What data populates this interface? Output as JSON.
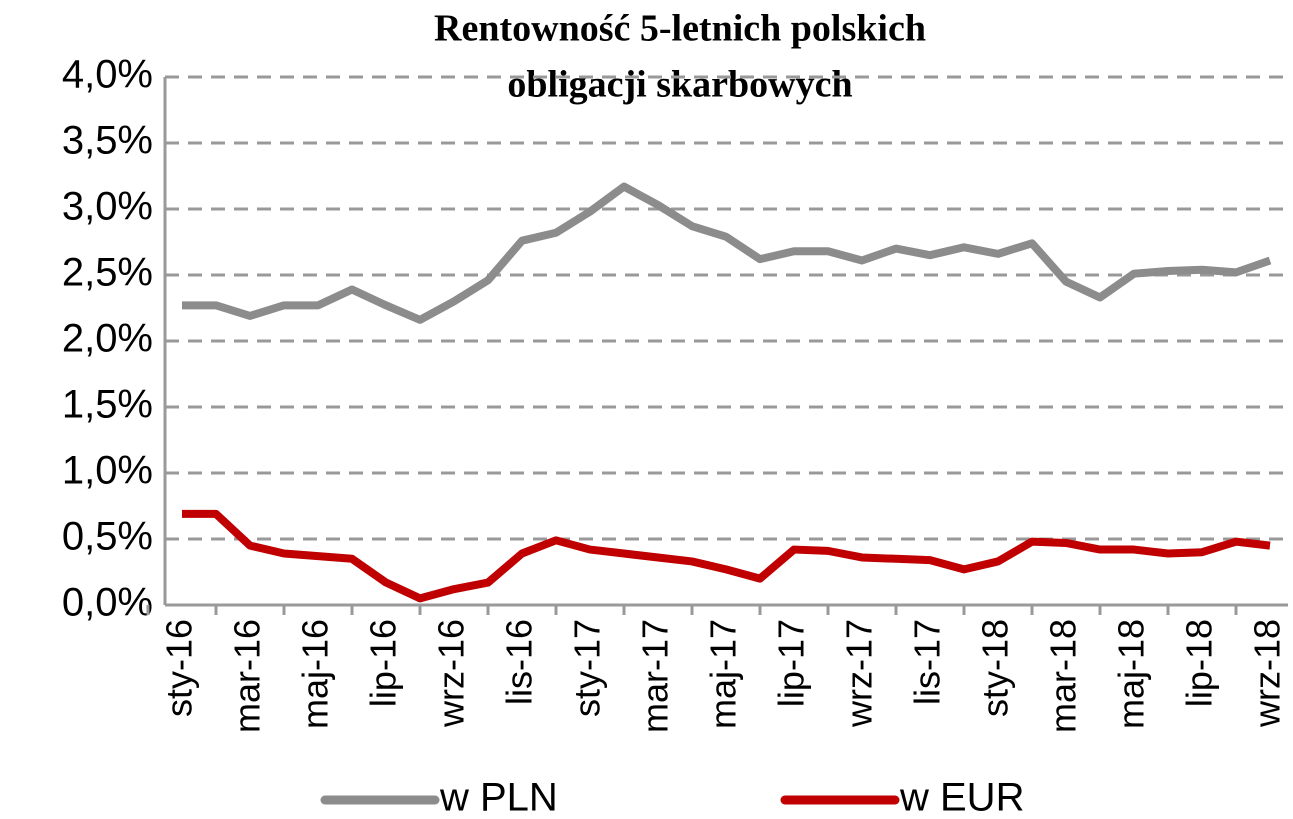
{
  "chart_data": {
    "type": "line",
    "title": [
      "Rentowność 5-letnich polskich",
      "obligacji skarbowych"
    ],
    "categories": [
      "sty-16",
      null,
      "mar-16",
      null,
      "maj-16",
      null,
      "lip-16",
      null,
      "wrz-16",
      null,
      "lis-16",
      null,
      "sty-17",
      null,
      "mar-17",
      null,
      "maj-17",
      null,
      "lip-17",
      null,
      "wrz-17",
      null,
      "lis-17",
      null,
      "sty-18",
      null,
      "mar-18",
      null,
      "maj-18",
      null,
      "lip-18",
      null,
      "wrz-18"
    ],
    "series": [
      {
        "name": "w PLN",
        "color": "#8c8c8c",
        "values": [
          2.27,
          2.27,
          2.19,
          2.27,
          2.27,
          2.39,
          2.27,
          2.16,
          2.3,
          2.46,
          2.76,
          2.82,
          2.98,
          3.17,
          3.03,
          2.87,
          2.79,
          2.62,
          2.68,
          2.68,
          2.61,
          2.7,
          2.65,
          2.71,
          2.66,
          2.74,
          2.45,
          2.33,
          2.51,
          2.53,
          2.54,
          2.52,
          2.61
        ]
      },
      {
        "name": "w EUR",
        "color": "#c00000",
        "values": [
          0.69,
          0.69,
          0.45,
          0.39,
          0.37,
          0.35,
          0.17,
          0.05,
          0.12,
          0.17,
          0.39,
          0.49,
          0.42,
          0.39,
          0.36,
          0.33,
          0.27,
          0.2,
          0.42,
          0.41,
          0.36,
          0.35,
          0.34,
          0.27,
          0.33,
          0.48,
          0.47,
          0.42,
          0.42,
          0.39,
          0.4,
          0.48,
          0.45
        ]
      }
    ],
    "ylim": [
      0,
      4
    ],
    "yticks": [
      {
        "value": 0,
        "label": "0,0%"
      },
      {
        "value": 0.5,
        "label": "0,5%"
      },
      {
        "value": 1,
        "label": "1,0%"
      },
      {
        "value": 1.5,
        "label": "1,5%"
      },
      {
        "value": 2,
        "label": "2,0%"
      },
      {
        "value": 2.5,
        "label": "2,5%"
      },
      {
        "value": 3,
        "label": "3,0%"
      },
      {
        "value": 3.5,
        "label": "3,5%"
      },
      {
        "value": 4,
        "label": "4,0%"
      }
    ],
    "grid": true,
    "legend": "bottom"
  }
}
